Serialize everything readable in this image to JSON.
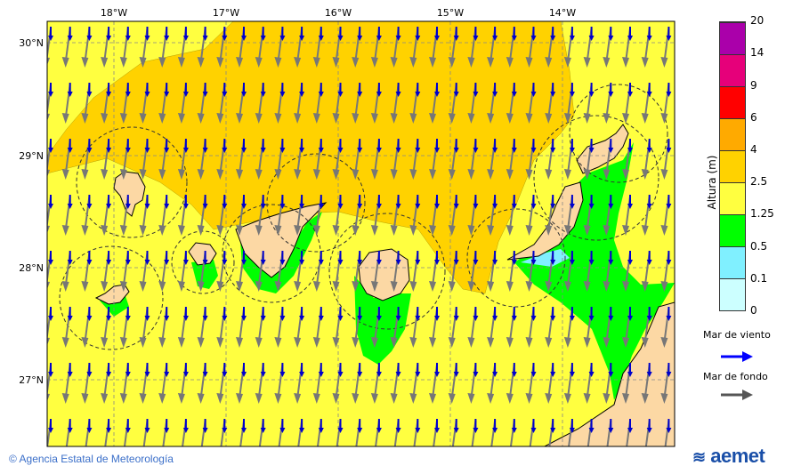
{
  "map": {
    "lon_labels": [
      "18°W",
      "17°W",
      "16°W",
      "15°W",
      "14°W"
    ],
    "lat_labels": [
      "30°N",
      "29°N",
      "28°N",
      "27°N"
    ],
    "colors": {
      "sea_default": "#ffff40",
      "land": "#fcd8a4",
      "band_2_5_4": "#ffd200",
      "band_0_5_1_25": "#00ff00",
      "band_0_1_0_5": "#80f0ff"
    },
    "arrow_direction": "south-southwest"
  },
  "colorbar": {
    "title": "Altura (m)",
    "ticks": [
      "0",
      "0.1",
      "0.5",
      "1.25",
      "2.5",
      "4",
      "6",
      "9",
      "14",
      "20"
    ],
    "colors": [
      "#ccffff",
      "#80f0ff",
      "#00ff00",
      "#ffff40",
      "#ffd200",
      "#ffaa00",
      "#ff0000",
      "#e6007a",
      "#aa00aa"
    ]
  },
  "legend": {
    "wind_sea": "Mar de viento",
    "wind_sea_color": "#0000ff",
    "swell": "Mar de fondo",
    "swell_color": "#555555"
  },
  "footer": {
    "copyright": "© Agencia Estatal de Meteorología",
    "logo": "aemet"
  }
}
